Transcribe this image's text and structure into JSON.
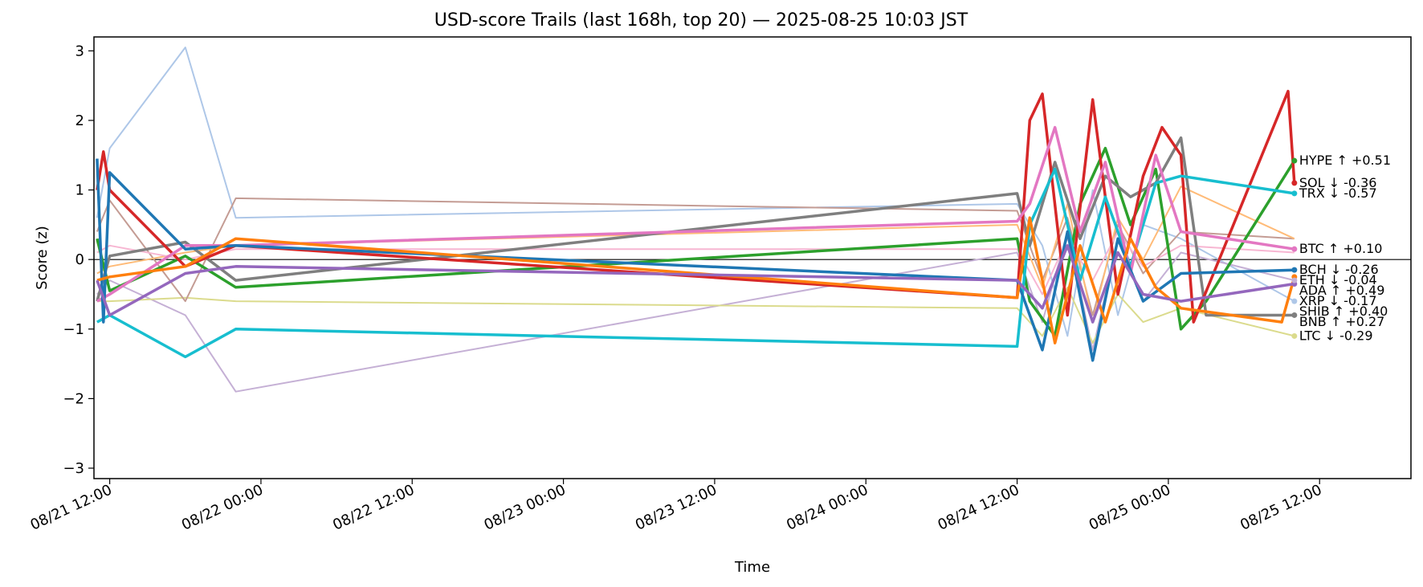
{
  "chart_data": {
    "type": "line",
    "title": "USD-score Trails (last 168h, top 20) — 2025-08-25 10:03 JST",
    "xlabel": "Time",
    "ylabel": "Score (z)",
    "ylim": [
      -3.15,
      3.2
    ],
    "xlim": [
      "2025-08-21 10:45",
      "2025-08-25 19:15"
    ],
    "x_ticks": [
      {
        "t": "2025-08-21 12:00",
        "label": "08/21 12:00"
      },
      {
        "t": "2025-08-22 00:00",
        "label": "08/22 00:00"
      },
      {
        "t": "2025-08-22 12:00",
        "label": "08/22 12:00"
      },
      {
        "t": "2025-08-23 00:00",
        "label": "08/23 00:00"
      },
      {
        "t": "2025-08-23 12:00",
        "label": "08/23 12:00"
      },
      {
        "t": "2025-08-24 00:00",
        "label": "08/24 00:00"
      },
      {
        "t": "2025-08-24 12:00",
        "label": "08/24 12:00"
      },
      {
        "t": "2025-08-25 00:00",
        "label": "08/25 00:00"
      },
      {
        "t": "2025-08-25 12:00",
        "label": "08/25 12:00"
      }
    ],
    "y_ticks": [
      3,
      2,
      1,
      0,
      -1,
      -2,
      -3
    ],
    "zero_line": true,
    "grid": false,
    "series": [
      {
        "name": "HYPE",
        "end_label": "HYPE ↑ +0.51",
        "color": "#2ca02c",
        "width": 3.5,
        "opacity": 1,
        "x": [
          "2025-08-21 11:00",
          "2025-08-21 12:00",
          "2025-08-21 18:00",
          "2025-08-21 22:00",
          "2025-08-24 12:00",
          "2025-08-24 13:00",
          "2025-08-24 15:00",
          "2025-08-24 17:00",
          "2025-08-24 19:00",
          "2025-08-24 21:00",
          "2025-08-24 23:00",
          "2025-08-25 01:00",
          "2025-08-25 03:00",
          "2025-08-25 10:00"
        ],
        "y": [
          0.3,
          -0.45,
          0.05,
          -0.4,
          0.3,
          -0.6,
          -1.1,
          0.8,
          1.6,
          0.5,
          1.3,
          -1.0,
          -0.6,
          1.42
        ]
      },
      {
        "name": "BNB",
        "end_label": "BNB ↑ +0.27",
        "color": "#7f7f7f",
        "width": 3.5,
        "opacity": 1,
        "x": [
          "2025-08-21 11:00",
          "2025-08-21 12:00",
          "2025-08-21 18:00",
          "2025-08-21 22:00",
          "2025-08-24 12:00",
          "2025-08-24 13:00",
          "2025-08-24 15:00",
          "2025-08-24 17:00",
          "2025-08-24 19:00",
          "2025-08-24 21:00",
          "2025-08-24 23:00",
          "2025-08-25 01:00",
          "2025-08-25 03:00",
          "2025-08-25 10:00"
        ],
        "y": [
          -0.6,
          0.05,
          0.25,
          -0.3,
          0.95,
          0.2,
          1.4,
          0.3,
          1.2,
          0.9,
          1.1,
          1.75,
          -0.8,
          -0.8
        ]
      },
      {
        "name": "SOL",
        "end_label": "SOL ↓ -0.36",
        "color": "#d62728",
        "width": 3.5,
        "opacity": 1,
        "x": [
          "2025-08-21 11:00",
          "2025-08-21 11:30",
          "2025-08-21 12:00",
          "2025-08-21 18:00",
          "2025-08-21 22:00",
          "2025-08-24 12:00",
          "2025-08-24 13:00",
          "2025-08-24 14:00",
          "2025-08-24 16:00",
          "2025-08-24 18:00",
          "2025-08-24 20:00",
          "2025-08-24 22:00",
          "2025-08-24 23:30",
          "2025-08-25 01:00",
          "2025-08-25 02:00",
          "2025-08-25 09:30",
          "2025-08-25 10:00"
        ],
        "y": [
          1.0,
          1.55,
          1.0,
          -0.1,
          0.2,
          -0.55,
          2.0,
          2.38,
          -0.8,
          2.3,
          -0.5,
          1.2,
          1.9,
          1.5,
          -0.9,
          2.42,
          1.1
        ]
      },
      {
        "name": "TRX",
        "end_label": "TRX ↓ -0.57",
        "color": "#17becf",
        "width": 3.5,
        "opacity": 1,
        "x": [
          "2025-08-21 11:00",
          "2025-08-21 12:00",
          "2025-08-21 18:00",
          "2025-08-21 22:00",
          "2025-08-24 12:00",
          "2025-08-24 13:00",
          "2025-08-24 15:00",
          "2025-08-24 17:00",
          "2025-08-24 19:00",
          "2025-08-24 21:00",
          "2025-08-24 23:00",
          "2025-08-25 01:00",
          "2025-08-25 10:00"
        ],
        "y": [
          -0.9,
          -0.8,
          -1.4,
          -1.0,
          -1.25,
          0.5,
          1.3,
          -0.3,
          0.9,
          -0.1,
          1.1,
          1.2,
          0.95
        ]
      },
      {
        "name": "BTC",
        "end_label": "BTC ↑ +0.10",
        "color": "#e377c2",
        "width": 3.5,
        "opacity": 1,
        "x": [
          "2025-08-21 11:00",
          "2025-08-21 12:00",
          "2025-08-21 18:00",
          "2025-08-21 22:00",
          "2025-08-24 12:00",
          "2025-08-24 13:00",
          "2025-08-24 15:00",
          "2025-08-24 17:00",
          "2025-08-24 19:00",
          "2025-08-24 21:00",
          "2025-08-24 23:00",
          "2025-08-25 01:00",
          "2025-08-25 10:00"
        ],
        "y": [
          -0.6,
          -0.5,
          0.2,
          0.2,
          0.55,
          0.8,
          1.9,
          0.4,
          1.4,
          -0.2,
          1.5,
          0.4,
          0.15
        ]
      },
      {
        "name": "BCH",
        "end_label": "BCH ↓ -0.26",
        "color": "#1f77b4",
        "width": 3.5,
        "opacity": 1,
        "x": [
          "2025-08-21 11:00",
          "2025-08-21 11:30",
          "2025-08-21 12:00",
          "2025-08-21 18:00",
          "2025-08-21 22:00",
          "2025-08-24 12:00",
          "2025-08-24 14:00",
          "2025-08-24 16:00",
          "2025-08-24 18:00",
          "2025-08-24 20:00",
          "2025-08-24 22:00",
          "2025-08-25 01:00",
          "2025-08-25 10:00"
        ],
        "y": [
          1.45,
          -0.9,
          1.25,
          0.15,
          0.2,
          -0.3,
          -1.3,
          0.4,
          -1.45,
          0.3,
          -0.6,
          -0.2,
          -0.15
        ]
      },
      {
        "name": "ETH",
        "end_label": "ETH ↓ -0.04",
        "color": "#ff7f0e",
        "width": 3.5,
        "opacity": 1,
        "x": [
          "2025-08-21 11:00",
          "2025-08-21 12:00",
          "2025-08-21 18:00",
          "2025-08-21 22:00",
          "2025-08-24 12:00",
          "2025-08-24 13:00",
          "2025-08-24 15:00",
          "2025-08-24 17:00",
          "2025-08-24 19:00",
          "2025-08-24 21:00",
          "2025-08-24 23:00",
          "2025-08-25 01:00",
          "2025-08-25 09:00",
          "2025-08-25 10:00"
        ],
        "y": [
          -0.3,
          -0.25,
          -0.1,
          0.3,
          -0.55,
          0.6,
          -1.2,
          0.2,
          -0.9,
          0.3,
          -0.4,
          -0.7,
          -0.9,
          -0.25
        ]
      },
      {
        "name": "XRP",
        "end_label": "XRP ↓ -0.17",
        "color": "#9467bd",
        "width": 3.5,
        "opacity": 1,
        "x": [
          "2025-08-21 11:00",
          "2025-08-21 12:00",
          "2025-08-21 18:00",
          "2025-08-21 22:00",
          "2025-08-24 12:00",
          "2025-08-24 14:00",
          "2025-08-24 16:00",
          "2025-08-24 18:00",
          "2025-08-24 20:00",
          "2025-08-24 22:00",
          "2025-08-25 01:00",
          "2025-08-25 10:00"
        ],
        "y": [
          -0.3,
          -0.8,
          -0.2,
          -0.1,
          -0.3,
          -0.7,
          0.2,
          -0.9,
          0.1,
          -0.5,
          -0.6,
          -0.35
        ]
      },
      {
        "name": "SHIB",
        "end_label": "SHIB ↑ +0.40",
        "color": "#aec7e8",
        "width": 2,
        "opacity": 1,
        "x": [
          "2025-08-21 11:00",
          "2025-08-21 12:00",
          "2025-08-21 18:00",
          "2025-08-21 22:00",
          "2025-08-24 12:00",
          "2025-08-24 14:00",
          "2025-08-24 16:00",
          "2025-08-24 18:00",
          "2025-08-24 20:00",
          "2025-08-24 22:00",
          "2025-08-25 01:00",
          "2025-08-25 10:00"
        ],
        "y": [
          0.6,
          1.6,
          3.05,
          0.6,
          0.8,
          0.2,
          -1.1,
          1.0,
          -0.8,
          0.5,
          0.3,
          -0.6
        ]
      },
      {
        "name": "ADA",
        "end_label": "ADA ↑ +0.49",
        "color": "#c5b0d5",
        "width": 2,
        "opacity": 1,
        "x": [
          "2025-08-21 11:00",
          "2025-08-21 12:00",
          "2025-08-21 18:00",
          "2025-08-21 22:00",
          "2025-08-24 12:00",
          "2025-08-24 14:00",
          "2025-08-24 16:00",
          "2025-08-24 18:00",
          "2025-08-24 20:00",
          "2025-08-24 22:00",
          "2025-08-25 01:00",
          "2025-08-25 10:00"
        ],
        "y": [
          -0.5,
          -0.3,
          -0.8,
          -1.9,
          0.1,
          -0.9,
          0.4,
          -1.3,
          0.3,
          -0.6,
          0.1,
          -0.3
        ]
      },
      {
        "name": "LTC",
        "end_label": "LTC ↓ -0.29",
        "color": "#dbdb8d",
        "width": 2,
        "opacity": 1,
        "x": [
          "2025-08-21 11:00",
          "2025-08-21 12:00",
          "2025-08-21 18:00",
          "2025-08-21 22:00",
          "2025-08-24 12:00",
          "2025-08-24 14:00",
          "2025-08-24 16:00",
          "2025-08-24 18:00",
          "2025-08-24 20:00",
          "2025-08-24 22:00",
          "2025-08-25 01:00",
          "2025-08-25 10:00"
        ],
        "y": [
          -0.6,
          -0.6,
          -0.55,
          -0.6,
          -0.7,
          -1.1,
          -0.4,
          -1.2,
          -0.5,
          -0.9,
          -0.7,
          -1.1
        ]
      },
      {
        "name": "",
        "end_label": "",
        "color": "#c49c94",
        "width": 2,
        "opacity": 1,
        "x": [
          "2025-08-21 11:00",
          "2025-08-21 12:00",
          "2025-08-21 18:00",
          "2025-08-21 22:00",
          "2025-08-24 12:00",
          "2025-08-24 14:00",
          "2025-08-24 16:00",
          "2025-08-24 18:00",
          "2025-08-24 20:00",
          "2025-08-24 22:00",
          "2025-08-25 01:00",
          "2025-08-25 10:00"
        ],
        "y": [
          0.4,
          0.85,
          -0.6,
          0.88,
          0.7,
          -0.3,
          0.6,
          -0.8,
          0.5,
          -0.2,
          0.4,
          0.3
        ]
      },
      {
        "name": "",
        "end_label": "",
        "color": "#ffbb78",
        "width": 2,
        "opacity": 1,
        "x": [
          "2025-08-21 11:00",
          "2025-08-21 12:00",
          "2025-08-21 18:00",
          "2025-08-21 22:00",
          "2025-08-24 12:00",
          "2025-08-24 14:00",
          "2025-08-24 16:00",
          "2025-08-24 18:00",
          "2025-08-24 20:00",
          "2025-08-24 22:00",
          "2025-08-25 01:00",
          "2025-08-25 10:00"
        ],
        "y": [
          -0.2,
          -0.1,
          0.1,
          0.2,
          0.5,
          -0.4,
          0.8,
          -0.9,
          0.6,
          0.0,
          1.05,
          0.3
        ]
      },
      {
        "name": "",
        "end_label": "",
        "color": "#f7b6d2",
        "width": 2,
        "opacity": 1,
        "x": [
          "2025-08-21 11:00",
          "2025-08-21 12:00",
          "2025-08-21 18:00",
          "2025-08-21 22:00",
          "2025-08-24 12:00",
          "2025-08-24 14:00",
          "2025-08-24 16:00",
          "2025-08-24 18:00",
          "2025-08-24 20:00",
          "2025-08-24 22:00",
          "2025-08-25 01:00",
          "2025-08-25 10:00"
        ],
        "y": [
          0.1,
          0.2,
          0.0,
          0.15,
          0.15,
          -0.5,
          0.3,
          -0.3,
          0.4,
          -0.1,
          0.2,
          0.1
        ]
      }
    ]
  }
}
